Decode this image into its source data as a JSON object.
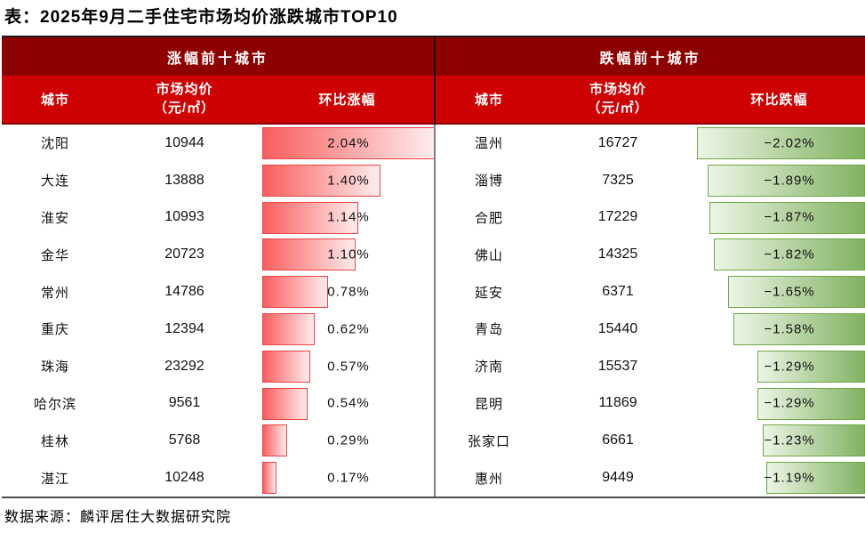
{
  "title": "表：2025年9月二手住宅市场均价涨跌城市TOP10",
  "source": "数据来源：麟评居住大数据研究院",
  "colors": {
    "header_band": "#8E0101",
    "subheader_band": "#CE0202",
    "rise_bar_border": "#EE4545",
    "rise_bar_start": "#F95E5E",
    "rise_bar_end": "#FEECEC",
    "fall_bar_border": "#6FA848",
    "fall_bar_start": "#ECF5E6",
    "fall_bar_end": "#81B261"
  },
  "left_panel": {
    "header": "涨幅前十城市",
    "columns": {
      "city": "城市",
      "price_line1": "市场均价",
      "price_line2": "（元/㎡）",
      "change": "环比涨幅"
    },
    "rows": [
      {
        "city": "沈阳",
        "price": "10944",
        "change": "2.04%",
        "value": 2.04
      },
      {
        "city": "大连",
        "price": "13888",
        "change": "1.40%",
        "value": 1.4
      },
      {
        "city": "淮安",
        "price": "10993",
        "change": "1.14%",
        "value": 1.14
      },
      {
        "city": "金华",
        "price": "20723",
        "change": "1.10%",
        "value": 1.1
      },
      {
        "city": "常州",
        "price": "14786",
        "change": "0.78%",
        "value": 0.78
      },
      {
        "city": "重庆",
        "price": "12394",
        "change": "0.62%",
        "value": 0.62
      },
      {
        "city": "珠海",
        "price": "23292",
        "change": "0.57%",
        "value": 0.57
      },
      {
        "city": "哈尔滨",
        "price": "9561",
        "change": "0.54%",
        "value": 0.54
      },
      {
        "city": "桂林",
        "price": "5768",
        "change": "0.29%",
        "value": 0.29
      },
      {
        "city": "湛江",
        "price": "10248",
        "change": "0.17%",
        "value": 0.17
      }
    ]
  },
  "right_panel": {
    "header": "跌幅前十城市",
    "columns": {
      "city": "城市",
      "price_line1": "市场均价",
      "price_line2": "（元/㎡）",
      "change": "环比跌幅"
    },
    "rows": [
      {
        "city": "温州",
        "price": "16727",
        "change": "−2.02%",
        "value": -2.02
      },
      {
        "city": "淄博",
        "price": "7325",
        "change": "−1.89%",
        "value": -1.89
      },
      {
        "city": "合肥",
        "price": "17229",
        "change": "−1.87%",
        "value": -1.87
      },
      {
        "city": "佛山",
        "price": "14325",
        "change": "−1.82%",
        "value": -1.82
      },
      {
        "city": "延安",
        "price": "6371",
        "change": "−1.65%",
        "value": -1.65
      },
      {
        "city": "青岛",
        "price": "15440",
        "change": "−1.58%",
        "value": -1.58
      },
      {
        "city": "济南",
        "price": "15537",
        "change": "−1.29%",
        "value": -1.29
      },
      {
        "city": "昆明",
        "price": "11869",
        "change": "−1.29%",
        "value": -1.29
      },
      {
        "city": "张家口",
        "price": "6661",
        "change": "−1.23%",
        "value": -1.23
      },
      {
        "city": "惠州",
        "price": "9449",
        "change": "−1.19%",
        "value": -1.19
      }
    ]
  },
  "chart_data": [
    {
      "type": "bar",
      "title": "涨幅前十城市",
      "categories": [
        "沈阳",
        "大连",
        "淮安",
        "金华",
        "常州",
        "重庆",
        "珠海",
        "哈尔滨",
        "桂林",
        "湛江"
      ],
      "series": [
        {
          "name": "市场均价（元/㎡）",
          "values": [
            10944,
            13888,
            10993,
            20723,
            14786,
            12394,
            23292,
            9561,
            5768,
            10248
          ]
        },
        {
          "name": "环比涨幅(%)",
          "values": [
            2.04,
            1.4,
            1.14,
            1.1,
            0.78,
            0.62,
            0.57,
            0.54,
            0.29,
            0.17
          ]
        }
      ],
      "xlabel": "环比涨幅",
      "ylabel": "城市",
      "xlim": [
        0,
        2.04
      ],
      "grid": false,
      "legend_position": "none"
    },
    {
      "type": "bar",
      "title": "跌幅前十城市",
      "categories": [
        "温州",
        "淄博",
        "合肥",
        "佛山",
        "延安",
        "青岛",
        "济南",
        "昆明",
        "张家口",
        "惠州"
      ],
      "series": [
        {
          "name": "市场均价（元/㎡）",
          "values": [
            16727,
            7325,
            17229,
            14325,
            6371,
            15440,
            15537,
            11869,
            6661,
            9449
          ]
        },
        {
          "name": "环比跌幅(%)",
          "values": [
            -2.02,
            -1.89,
            -1.87,
            -1.82,
            -1.65,
            -1.58,
            -1.29,
            -1.29,
            -1.23,
            -1.19
          ]
        }
      ],
      "xlabel": "环比跌幅",
      "ylabel": "城市",
      "xlim": [
        -2.02,
        0
      ],
      "grid": false,
      "legend_position": "none"
    }
  ]
}
